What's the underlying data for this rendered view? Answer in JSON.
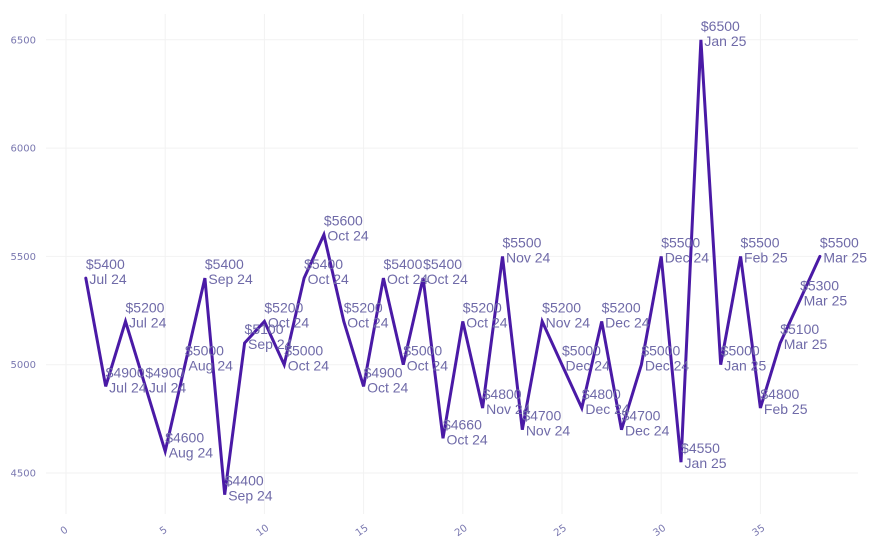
{
  "chart_data": {
    "type": "line",
    "title": "",
    "xlabel": "",
    "ylabel": "",
    "xlim": [
      -1,
      40
    ],
    "ylim": [
      4300,
      6600
    ],
    "x_ticks": [
      0,
      5,
      10,
      15,
      20,
      25,
      30,
      35
    ],
    "y_ticks": [
      4500,
      5000,
      5500,
      6000,
      6500
    ],
    "grid": true,
    "colors": {
      "line": "#4a1aa6",
      "label": "#6f6aa8",
      "tick": "#7a78b0",
      "grid": "#f2f2f2"
    },
    "series": [
      {
        "x": [
          1,
          2,
          3,
          4,
          5,
          6,
          7,
          8,
          9,
          10,
          11,
          12,
          13,
          14,
          15,
          16,
          17,
          18,
          19,
          20,
          21,
          22,
          23,
          24,
          25,
          26,
          27,
          28,
          29,
          30,
          31,
          32,
          33,
          34,
          35,
          36,
          37,
          38
        ],
        "values": [
          5400,
          4900,
          5200,
          4900,
          4600,
          5000,
          5400,
          4400,
          5100,
          5200,
          5000,
          5400,
          5600,
          5200,
          4900,
          5400,
          5000,
          5400,
          4660,
          5200,
          4800,
          5500,
          4700,
          5200,
          5000,
          4800,
          5200,
          4700,
          5000,
          5500,
          4550,
          6500,
          5000,
          5500,
          4800,
          5100,
          5300,
          5500
        ],
        "value_labels": [
          "$5400",
          "$4900",
          "$5200",
          "$4900",
          "$4600",
          "$5000",
          "$5400",
          "$4400",
          "$5100",
          "$5200",
          "$5000",
          "$5400",
          "$5600",
          "$5200",
          "$4900",
          "$5400",
          "$5000",
          "$5400",
          "$4660",
          "$5200",
          "$4800",
          "$5500",
          "$4700",
          "$5200",
          "$5000",
          "$4800",
          "$5200",
          "$4700",
          "$5000",
          "$5500",
          "$4550",
          "$6500",
          "$5000",
          "$5500",
          "$4800",
          "$5100",
          "$5300",
          "$5500"
        ],
        "date_labels": [
          "Jul 24",
          "Jul 24",
          "Jul 24",
          "Jul 24",
          "Aug 24",
          "Aug 24",
          "Sep 24",
          "Sep 24",
          "Sep 24",
          "Oct 24",
          "Oct 24",
          "Oct 24",
          "Oct 24",
          "Oct 24",
          "Oct 24",
          "Oct 24",
          "Oct 24",
          "Oct 24",
          "Oct 24",
          "Oct 24",
          "Nov 24",
          "Nov 24",
          "Nov 24",
          "Nov 24",
          "Dec 24",
          "Dec 24",
          "Dec 24",
          "Dec 24",
          "Dec 24",
          "Dec 24",
          "Jan 25",
          "Jan 25",
          "Jan 25",
          "Feb 25",
          "Feb 25",
          "Mar 25",
          "Mar 25",
          "Mar 25"
        ]
      }
    ]
  }
}
